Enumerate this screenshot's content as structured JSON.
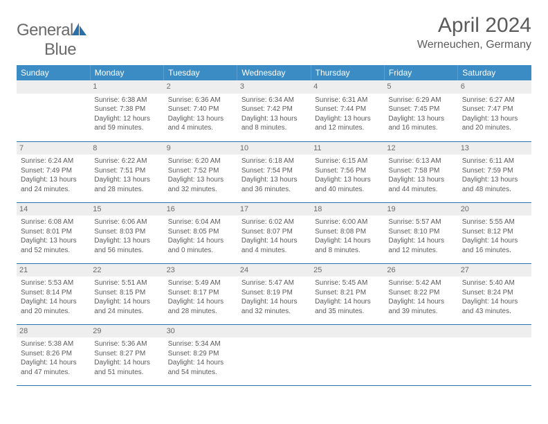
{
  "logo": {
    "text_general": "General",
    "text_blue": "Blue"
  },
  "header": {
    "title": "April 2024",
    "location": "Werneuchen, Germany"
  },
  "colors": {
    "header_bg": "#3b8bc4",
    "header_text": "#ffffff",
    "row_divider": "#2b6fa8",
    "daynum_bg": "#eeeeee",
    "body_text": "#5a5a5a",
    "logo_gray": "#6a6a6a",
    "logo_blue": "#2b6fa8"
  },
  "typography": {
    "title_fontsize": 30,
    "subtitle_fontsize": 16,
    "header_fontsize": 12,
    "cell_fontsize": 10
  },
  "day_headers": [
    "Sunday",
    "Monday",
    "Tuesday",
    "Wednesday",
    "Thursday",
    "Friday",
    "Saturday"
  ],
  "weeks": [
    [
      null,
      {
        "n": "1",
        "sr": "Sunrise: 6:38 AM",
        "ss": "Sunset: 7:38 PM",
        "d1": "Daylight: 12 hours",
        "d2": "and 59 minutes."
      },
      {
        "n": "2",
        "sr": "Sunrise: 6:36 AM",
        "ss": "Sunset: 7:40 PM",
        "d1": "Daylight: 13 hours",
        "d2": "and 4 minutes."
      },
      {
        "n": "3",
        "sr": "Sunrise: 6:34 AM",
        "ss": "Sunset: 7:42 PM",
        "d1": "Daylight: 13 hours",
        "d2": "and 8 minutes."
      },
      {
        "n": "4",
        "sr": "Sunrise: 6:31 AM",
        "ss": "Sunset: 7:44 PM",
        "d1": "Daylight: 13 hours",
        "d2": "and 12 minutes."
      },
      {
        "n": "5",
        "sr": "Sunrise: 6:29 AM",
        "ss": "Sunset: 7:45 PM",
        "d1": "Daylight: 13 hours",
        "d2": "and 16 minutes."
      },
      {
        "n": "6",
        "sr": "Sunrise: 6:27 AM",
        "ss": "Sunset: 7:47 PM",
        "d1": "Daylight: 13 hours",
        "d2": "and 20 minutes."
      }
    ],
    [
      {
        "n": "7",
        "sr": "Sunrise: 6:24 AM",
        "ss": "Sunset: 7:49 PM",
        "d1": "Daylight: 13 hours",
        "d2": "and 24 minutes."
      },
      {
        "n": "8",
        "sr": "Sunrise: 6:22 AM",
        "ss": "Sunset: 7:51 PM",
        "d1": "Daylight: 13 hours",
        "d2": "and 28 minutes."
      },
      {
        "n": "9",
        "sr": "Sunrise: 6:20 AM",
        "ss": "Sunset: 7:52 PM",
        "d1": "Daylight: 13 hours",
        "d2": "and 32 minutes."
      },
      {
        "n": "10",
        "sr": "Sunrise: 6:18 AM",
        "ss": "Sunset: 7:54 PM",
        "d1": "Daylight: 13 hours",
        "d2": "and 36 minutes."
      },
      {
        "n": "11",
        "sr": "Sunrise: 6:15 AM",
        "ss": "Sunset: 7:56 PM",
        "d1": "Daylight: 13 hours",
        "d2": "and 40 minutes."
      },
      {
        "n": "12",
        "sr": "Sunrise: 6:13 AM",
        "ss": "Sunset: 7:58 PM",
        "d1": "Daylight: 13 hours",
        "d2": "and 44 minutes."
      },
      {
        "n": "13",
        "sr": "Sunrise: 6:11 AM",
        "ss": "Sunset: 7:59 PM",
        "d1": "Daylight: 13 hours",
        "d2": "and 48 minutes."
      }
    ],
    [
      {
        "n": "14",
        "sr": "Sunrise: 6:08 AM",
        "ss": "Sunset: 8:01 PM",
        "d1": "Daylight: 13 hours",
        "d2": "and 52 minutes."
      },
      {
        "n": "15",
        "sr": "Sunrise: 6:06 AM",
        "ss": "Sunset: 8:03 PM",
        "d1": "Daylight: 13 hours",
        "d2": "and 56 minutes."
      },
      {
        "n": "16",
        "sr": "Sunrise: 6:04 AM",
        "ss": "Sunset: 8:05 PM",
        "d1": "Daylight: 14 hours",
        "d2": "and 0 minutes."
      },
      {
        "n": "17",
        "sr": "Sunrise: 6:02 AM",
        "ss": "Sunset: 8:07 PM",
        "d1": "Daylight: 14 hours",
        "d2": "and 4 minutes."
      },
      {
        "n": "18",
        "sr": "Sunrise: 6:00 AM",
        "ss": "Sunset: 8:08 PM",
        "d1": "Daylight: 14 hours",
        "d2": "and 8 minutes."
      },
      {
        "n": "19",
        "sr": "Sunrise: 5:57 AM",
        "ss": "Sunset: 8:10 PM",
        "d1": "Daylight: 14 hours",
        "d2": "and 12 minutes."
      },
      {
        "n": "20",
        "sr": "Sunrise: 5:55 AM",
        "ss": "Sunset: 8:12 PM",
        "d1": "Daylight: 14 hours",
        "d2": "and 16 minutes."
      }
    ],
    [
      {
        "n": "21",
        "sr": "Sunrise: 5:53 AM",
        "ss": "Sunset: 8:14 PM",
        "d1": "Daylight: 14 hours",
        "d2": "and 20 minutes."
      },
      {
        "n": "22",
        "sr": "Sunrise: 5:51 AM",
        "ss": "Sunset: 8:15 PM",
        "d1": "Daylight: 14 hours",
        "d2": "and 24 minutes."
      },
      {
        "n": "23",
        "sr": "Sunrise: 5:49 AM",
        "ss": "Sunset: 8:17 PM",
        "d1": "Daylight: 14 hours",
        "d2": "and 28 minutes."
      },
      {
        "n": "24",
        "sr": "Sunrise: 5:47 AM",
        "ss": "Sunset: 8:19 PM",
        "d1": "Daylight: 14 hours",
        "d2": "and 32 minutes."
      },
      {
        "n": "25",
        "sr": "Sunrise: 5:45 AM",
        "ss": "Sunset: 8:21 PM",
        "d1": "Daylight: 14 hours",
        "d2": "and 35 minutes."
      },
      {
        "n": "26",
        "sr": "Sunrise: 5:42 AM",
        "ss": "Sunset: 8:22 PM",
        "d1": "Daylight: 14 hours",
        "d2": "and 39 minutes."
      },
      {
        "n": "27",
        "sr": "Sunrise: 5:40 AM",
        "ss": "Sunset: 8:24 PM",
        "d1": "Daylight: 14 hours",
        "d2": "and 43 minutes."
      }
    ],
    [
      {
        "n": "28",
        "sr": "Sunrise: 5:38 AM",
        "ss": "Sunset: 8:26 PM",
        "d1": "Daylight: 14 hours",
        "d2": "and 47 minutes."
      },
      {
        "n": "29",
        "sr": "Sunrise: 5:36 AM",
        "ss": "Sunset: 8:27 PM",
        "d1": "Daylight: 14 hours",
        "d2": "and 51 minutes."
      },
      {
        "n": "30",
        "sr": "Sunrise: 5:34 AM",
        "ss": "Sunset: 8:29 PM",
        "d1": "Daylight: 14 hours",
        "d2": "and 54 minutes."
      },
      null,
      null,
      null,
      null
    ]
  ]
}
